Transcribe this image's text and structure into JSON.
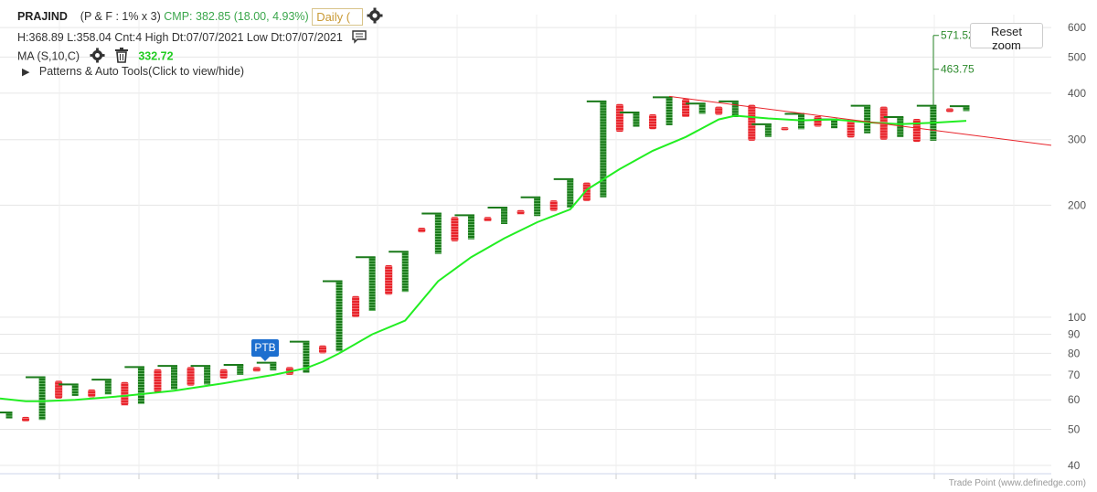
{
  "header": {
    "symbol": "PRAJIND",
    "params": "(P & F : 1% x 3)",
    "cmp": "CMP: 382.85 (18.00, 4.93%)",
    "interval": "Daily (",
    "stats": "H:368.89 L:358.04 Cnt:4 High Dt:07/07/2021 Low Dt:07/07/2021",
    "ma_label": "MA (S,10,C)",
    "ma_value": "332.72",
    "patterns": "Patterns & Auto Tools(Click to view/hide)"
  },
  "reset_zoom": "Reset zoom",
  "ptb_label": "PTB",
  "credits": "Trade Point (www.definedge.com)",
  "colors": {
    "x_col": "#1a7a1a",
    "o_col": "#e8232a",
    "ma": "#22ee22",
    "trendline": "#e8232a",
    "target": "#2e8b2e"
  },
  "chart_data": {
    "type": "point-and-figure",
    "scale": "log",
    "ylim": [
      38,
      650
    ],
    "yticks": [
      40,
      50,
      60,
      70,
      80,
      90,
      100,
      200,
      300,
      400,
      500,
      600
    ],
    "grid": true,
    "columns": [
      {
        "type": "X",
        "low": 53.5,
        "high": 55.5
      },
      {
        "type": "O",
        "low": 52.5,
        "high": 54
      },
      {
        "type": "X",
        "low": 53,
        "high": 69
      },
      {
        "type": "O",
        "low": 60.5,
        "high": 67.5
      },
      {
        "type": "X",
        "low": 61.5,
        "high": 66
      },
      {
        "type": "O",
        "low": 61,
        "high": 64
      },
      {
        "type": "X",
        "low": 62,
        "high": 68
      },
      {
        "type": "O",
        "low": 58,
        "high": 67
      },
      {
        "type": "X",
        "low": 58.5,
        "high": 73.5
      },
      {
        "type": "O",
        "low": 63,
        "high": 72.5
      },
      {
        "type": "X",
        "low": 64,
        "high": 74
      },
      {
        "type": "O",
        "low": 65.5,
        "high": 73.5
      },
      {
        "type": "X",
        "low": 66,
        "high": 74
      },
      {
        "type": "O",
        "low": 68.5,
        "high": 72.5
      },
      {
        "type": "X",
        "low": 70,
        "high": 74.5
      },
      {
        "type": "O",
        "low": 71.5,
        "high": 73.5
      },
      {
        "type": "X",
        "low": 72,
        "high": 75.5
      },
      {
        "type": "O",
        "low": 70,
        "high": 73.5
      },
      {
        "type": "X",
        "low": 71,
        "high": 86
      },
      {
        "type": "O",
        "low": 80,
        "high": 84
      },
      {
        "type": "X",
        "low": 81,
        "high": 125
      },
      {
        "type": "O",
        "low": 100,
        "high": 114
      },
      {
        "type": "X",
        "low": 104,
        "high": 145
      },
      {
        "type": "O",
        "low": 115,
        "high": 138
      },
      {
        "type": "X",
        "low": 117,
        "high": 150
      },
      {
        "type": "O",
        "low": 169,
        "high": 174
      },
      {
        "type": "X",
        "low": 148,
        "high": 190
      },
      {
        "type": "O",
        "low": 160,
        "high": 186
      },
      {
        "type": "X",
        "low": 162,
        "high": 188
      },
      {
        "type": "O",
        "low": 181,
        "high": 186
      },
      {
        "type": "X",
        "low": 178,
        "high": 197
      },
      {
        "type": "O",
        "low": 189,
        "high": 194
      },
      {
        "type": "X",
        "low": 187,
        "high": 210
      },
      {
        "type": "O",
        "low": 193,
        "high": 206
      },
      {
        "type": "X",
        "low": 197,
        "high": 235
      },
      {
        "type": "O",
        "low": 205,
        "high": 230
      },
      {
        "type": "X",
        "low": 210,
        "high": 380
      },
      {
        "type": "O",
        "low": 315,
        "high": 374
      },
      {
        "type": "X",
        "low": 325,
        "high": 355
      },
      {
        "type": "O",
        "low": 320,
        "high": 351
      },
      {
        "type": "X",
        "low": 328,
        "high": 390
      },
      {
        "type": "O",
        "low": 345,
        "high": 386
      },
      {
        "type": "X",
        "low": 352,
        "high": 375
      },
      {
        "type": "O",
        "low": 350,
        "high": 368
      },
      {
        "type": "X",
        "low": 345,
        "high": 380
      },
      {
        "type": "O",
        "low": 298,
        "high": 372
      },
      {
        "type": "X",
        "low": 305,
        "high": 330
      },
      {
        "type": "O",
        "low": 318,
        "high": 324
      },
      {
        "type": "X",
        "low": 320,
        "high": 352
      },
      {
        "type": "O",
        "low": 325,
        "high": 347
      },
      {
        "type": "X",
        "low": 322,
        "high": 340
      },
      {
        "type": "O",
        "low": 304,
        "high": 337
      },
      {
        "type": "X",
        "low": 312,
        "high": 370
      },
      {
        "type": "O",
        "low": 300,
        "high": 368
      },
      {
        "type": "X",
        "low": 305,
        "high": 345
      },
      {
        "type": "O",
        "low": 296,
        "high": 341
      },
      {
        "type": "X",
        "low": 298,
        "high": 370
      },
      {
        "type": "O",
        "low": 356,
        "high": 364
      },
      {
        "type": "X",
        "low": 358,
        "high": 369
      }
    ],
    "moving_average": [
      [
        1,
        60.5
      ],
      [
        2,
        59.5
      ],
      [
        3,
        59.5
      ],
      [
        5,
        60
      ],
      [
        8,
        61.5
      ],
      [
        11,
        63.5
      ],
      [
        14,
        66.5
      ],
      [
        17,
        70
      ],
      [
        19,
        73
      ],
      [
        20,
        76
      ],
      [
        21,
        80
      ],
      [
        23,
        90
      ],
      [
        25,
        98
      ],
      [
        27,
        125
      ],
      [
        29,
        145
      ],
      [
        31,
        163
      ],
      [
        33,
        180
      ],
      [
        35,
        195
      ],
      [
        36,
        220
      ],
      [
        38,
        250
      ],
      [
        40,
        280
      ],
      [
        42,
        305
      ],
      [
        44,
        340
      ],
      [
        45,
        348
      ],
      [
        47,
        342
      ],
      [
        49,
        338
      ],
      [
        51,
        340
      ],
      [
        53,
        334
      ],
      [
        55,
        330
      ],
      [
        57,
        333
      ],
      [
        59,
        337
      ]
    ],
    "trendline": {
      "start": [
        41,
        392
      ],
      "end": [
        63,
        310
      ]
    },
    "targets": [
      571.52,
      463.75
    ]
  }
}
